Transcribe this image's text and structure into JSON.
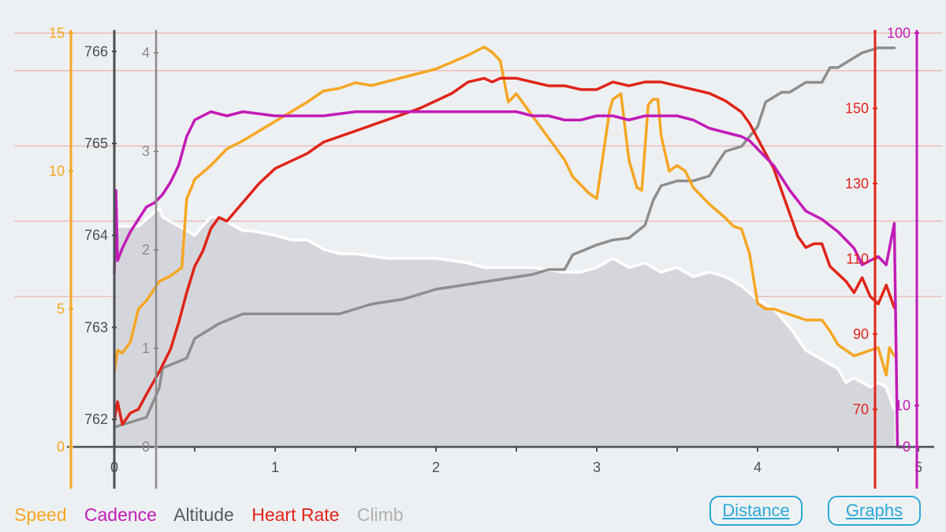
{
  "chart_data": {
    "type": "line",
    "x_axis": {
      "min": 0,
      "max": 5,
      "ticks": [
        0,
        1,
        2,
        3,
        4,
        5
      ]
    },
    "legend": [
      {
        "name": "Speed",
        "color": "#f5a623"
      },
      {
        "name": "Cadence",
        "color": "#c21bb7"
      },
      {
        "name": "Altitude",
        "color": "#555a60"
      },
      {
        "name": "Heart Rate",
        "color": "#e02418"
      },
      {
        "name": "Climb",
        "color": "#b8b8b8"
      }
    ],
    "axes": {
      "speed": {
        "min": 0,
        "max": 15,
        "ticks": [
          0,
          5,
          10,
          15
        ],
        "color": "#f5a623"
      },
      "altitude": {
        "min": 761.7,
        "max": 766.2,
        "ticks": [
          762,
          763,
          764,
          765,
          766
        ],
        "color": "#4a4f55"
      },
      "climb": {
        "min": 0,
        "max": 4.2,
        "ticks": [
          0,
          1,
          2,
          3,
          4
        ],
        "color": "#8a8a8a"
      },
      "heart_rate": {
        "min": 60,
        "max": 170,
        "ticks": [
          70,
          90,
          110,
          130,
          150
        ],
        "color": "#e02418"
      },
      "cadence": {
        "min": 0,
        "max": 100,
        "ticks": [
          0,
          10,
          100
        ],
        "color": "#c21bb7"
      }
    },
    "series": [
      {
        "name": "Altitude",
        "axis": "altitude",
        "color": "#ffffff",
        "fill": "#cfd1d6",
        "x": [
          0,
          0.02,
          0.15,
          0.28,
          0.3,
          0.4,
          0.5,
          0.6,
          0.65,
          0.8,
          0.85,
          1.0,
          1.1,
          1.2,
          1.3,
          1.4,
          1.5,
          1.7,
          2.0,
          2.2,
          2.3,
          2.6,
          2.8,
          2.9,
          3.0,
          3.1,
          3.2,
          3.3,
          3.4,
          3.5,
          3.6,
          3.7,
          3.8,
          3.9,
          4.0,
          4.1,
          4.15,
          4.2,
          4.3,
          4.4,
          4.5,
          4.55,
          4.6,
          4.7,
          4.75,
          4.8,
          4.85
        ],
        "y": [
          764.0,
          764.1,
          764.1,
          764.3,
          764.2,
          764.1,
          764.0,
          764.2,
          764.2,
          764.05,
          764.05,
          764.0,
          763.95,
          763.95,
          763.85,
          763.8,
          763.8,
          763.75,
          763.75,
          763.7,
          763.65,
          763.65,
          763.6,
          763.6,
          763.65,
          763.75,
          763.65,
          763.7,
          763.6,
          763.65,
          763.55,
          763.6,
          763.55,
          763.45,
          763.3,
          763.2,
          763.1,
          763.0,
          762.75,
          762.65,
          762.55,
          762.4,
          762.45,
          762.35,
          762.4,
          762.35,
          762.1
        ]
      },
      {
        "name": "Climb",
        "axis": "climb",
        "color": "#8e8e8e",
        "x": [
          0,
          0.2,
          0.28,
          0.3,
          0.45,
          0.5,
          0.65,
          0.8,
          0.95,
          1.0,
          1.4,
          1.5,
          1.6,
          1.8,
          2.0,
          2.2,
          2.4,
          2.6,
          2.7,
          2.8,
          2.85,
          3.0,
          3.1,
          3.2,
          3.3,
          3.35,
          3.4,
          3.5,
          3.6,
          3.7,
          3.75,
          3.8,
          3.9,
          4.0,
          4.05,
          4.15,
          4.2,
          4.3,
          4.4,
          4.45,
          4.5,
          4.6,
          4.65,
          4.75,
          4.85
        ],
        "y": [
          0.2,
          0.3,
          0.6,
          0.8,
          0.9,
          1.1,
          1.25,
          1.35,
          1.35,
          1.35,
          1.35,
          1.4,
          1.45,
          1.5,
          1.6,
          1.65,
          1.7,
          1.75,
          1.8,
          1.8,
          1.95,
          2.05,
          2.1,
          2.12,
          2.25,
          2.5,
          2.65,
          2.7,
          2.7,
          2.75,
          2.88,
          3.0,
          3.05,
          3.25,
          3.5,
          3.6,
          3.6,
          3.7,
          3.7,
          3.85,
          3.85,
          3.95,
          4.0,
          4.05,
          4.05
        ]
      },
      {
        "name": "Speed",
        "axis": "speed",
        "color": "#f5a623",
        "x": [
          0,
          0.02,
          0.05,
          0.1,
          0.15,
          0.2,
          0.28,
          0.35,
          0.42,
          0.45,
          0.48,
          0.5,
          0.6,
          0.7,
          0.8,
          1.0,
          1.2,
          1.3,
          1.4,
          1.5,
          1.6,
          1.8,
          2.0,
          2.2,
          2.3,
          2.35,
          2.4,
          2.45,
          2.5,
          2.6,
          2.7,
          2.8,
          2.85,
          2.9,
          2.95,
          3.0,
          3.05,
          3.08,
          3.1,
          3.15,
          3.2,
          3.25,
          3.28,
          3.32,
          3.35,
          3.38,
          3.4,
          3.45,
          3.5,
          3.55,
          3.6,
          3.7,
          3.8,
          3.85,
          3.9,
          3.95,
          4.0,
          4.05,
          4.1,
          4.2,
          4.3,
          4.4,
          4.45,
          4.5,
          4.55,
          4.6,
          4.65,
          4.7,
          4.75,
          4.8,
          4.82,
          4.85
        ],
        "y": [
          2.7,
          3.5,
          3.4,
          3.8,
          5.0,
          5.3,
          6.0,
          6.2,
          6.5,
          9.0,
          9.4,
          9.7,
          10.2,
          10.8,
          11.1,
          11.8,
          12.5,
          12.9,
          13.0,
          13.2,
          13.1,
          13.4,
          13.7,
          14.2,
          14.5,
          14.3,
          14.0,
          12.5,
          12.8,
          12.0,
          11.2,
          10.4,
          9.8,
          9.5,
          9.2,
          9.0,
          11.0,
          12.2,
          12.6,
          12.8,
          10.4,
          9.4,
          9.3,
          12.4,
          12.6,
          12.6,
          11.3,
          10.0,
          10.2,
          10.0,
          9.4,
          8.8,
          8.3,
          8.0,
          7.9,
          7.0,
          5.2,
          5.0,
          5.0,
          4.8,
          4.6,
          4.6,
          4.2,
          3.7,
          3.5,
          3.3,
          3.4,
          3.5,
          3.6,
          2.6,
          3.6,
          3.3
        ]
      },
      {
        "name": "Heart Rate",
        "axis": "heart_rate",
        "color": "#e02418",
        "x": [
          0,
          0.02,
          0.05,
          0.1,
          0.15,
          0.2,
          0.28,
          0.35,
          0.4,
          0.45,
          0.5,
          0.55,
          0.6,
          0.65,
          0.7,
          0.8,
          0.9,
          1.0,
          1.2,
          1.3,
          1.5,
          1.7,
          1.9,
          2.1,
          2.2,
          2.3,
          2.35,
          2.4,
          2.5,
          2.6,
          2.7,
          2.8,
          2.9,
          3.0,
          3.1,
          3.2,
          3.3,
          3.4,
          3.5,
          3.6,
          3.7,
          3.8,
          3.9,
          3.95,
          4.0,
          4.05,
          4.1,
          4.15,
          4.2,
          4.25,
          4.3,
          4.35,
          4.4,
          4.45,
          4.5,
          4.55,
          4.6,
          4.65,
          4.7,
          4.75,
          4.8,
          4.85
        ],
        "y": [
          67,
          72,
          66,
          69,
          70,
          74,
          80,
          86,
          93,
          101,
          108,
          112,
          118,
          121,
          120,
          125,
          130,
          134,
          138,
          141,
          144,
          147,
          150,
          154,
          157,
          158,
          157,
          158,
          158,
          157,
          156,
          156,
          155,
          155,
          157,
          156,
          157,
          157,
          156,
          155,
          154,
          152,
          149,
          146,
          142,
          138,
          134,
          128,
          122,
          116,
          113,
          114,
          114,
          108,
          106,
          104,
          101,
          105,
          100,
          98,
          103,
          97
        ]
      },
      {
        "name": "Cadence",
        "axis": "cadence",
        "color": "#c21bb7",
        "x": [
          0,
          0.01,
          0.02,
          0.05,
          0.1,
          0.15,
          0.2,
          0.25,
          0.3,
          0.35,
          0.4,
          0.45,
          0.5,
          0.55,
          0.6,
          0.7,
          0.8,
          1.0,
          1.2,
          1.3,
          1.5,
          1.7,
          1.9,
          2.0,
          2.2,
          2.3,
          2.4,
          2.5,
          2.6,
          2.7,
          2.8,
          2.9,
          3.0,
          3.1,
          3.2,
          3.3,
          3.4,
          3.5,
          3.6,
          3.7,
          3.8,
          3.9,
          3.95,
          4.0,
          4.05,
          4.1,
          4.15,
          4.2,
          4.3,
          4.4,
          4.5,
          4.55,
          4.6,
          4.65,
          4.7,
          4.75,
          4.8,
          4.82,
          4.85,
          4.87,
          4.9
        ],
        "y": [
          42,
          62,
          45,
          48,
          52,
          55,
          58,
          59,
          61,
          64,
          68,
          75,
          79,
          80,
          81,
          80,
          81,
          80,
          80,
          80,
          81,
          81,
          81,
          81,
          81,
          81,
          81,
          81,
          80,
          80,
          79,
          79,
          80,
          80,
          79,
          80,
          80,
          80,
          79,
          77,
          76,
          75,
          74,
          72,
          70,
          68,
          65,
          62,
          57,
          55,
          52,
          50,
          48,
          44,
          45,
          46,
          44,
          48,
          54,
          0,
          0
        ]
      }
    ]
  },
  "legend_labels": [
    "Speed",
    "Cadence",
    "Altitude",
    "Heart Rate",
    "Climb"
  ],
  "buttons": {
    "distance": "Distance",
    "graphs": "Graphs"
  }
}
